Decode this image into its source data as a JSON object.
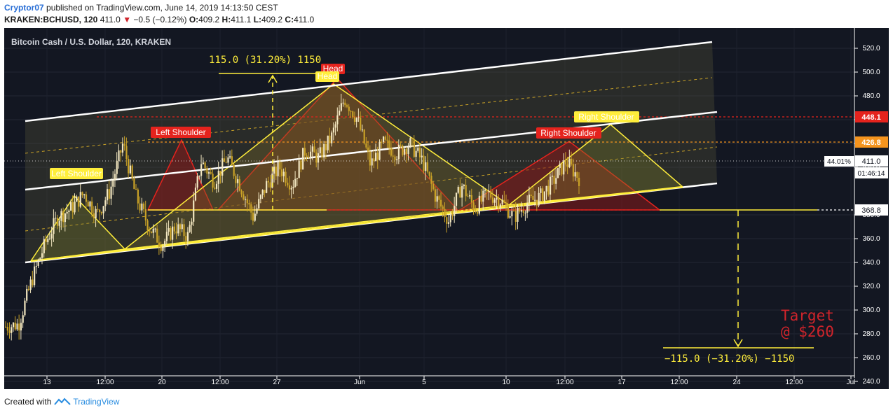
{
  "header": {
    "author": "Cryptor07",
    "published_text": "published on TradingView.com, June 14, 2019 14:13:50 CEST",
    "symbol": "KRAKEN:BCHUSD, 120",
    "last": "411.0",
    "change_arrow": "▼",
    "change": "−0.5 (−0.12%)",
    "o_label": "O:",
    "o_value": "409.2",
    "h_label": "H:",
    "h_value": "411.1",
    "l_label": "L:",
    "l_value": "409.2",
    "c_label": "C:",
    "c_value": "411.0"
  },
  "chart_title": "Bitcoin Cash / U.S. Dollar, 120, KRAKEN",
  "colors": {
    "background": "#131722",
    "candle": "#e8d9a8",
    "white_channel": "#ffffff",
    "yellow": "#ffee3b",
    "red": "#e5231d",
    "orange": "#f5941e",
    "grid": "#2a2e39"
  },
  "annotations": {
    "measure_top": "115.0  (31.20%)  1150",
    "measure_bottom": "−115.0  (−31.20%)  −1150",
    "target_line1": "Target",
    "target_line2": "@ $260",
    "labels": {
      "head_red": "Head",
      "head_yellow": "Head",
      "left_shoulder_red": "Left Shoulder",
      "left_shoulder_yellow": "Left Shoulder",
      "right_shoulder_red": "Right Shoulder",
      "right_shoulder_yellow": "Right Shoulder"
    }
  },
  "price_axis": {
    "ticks": [
      "520.0",
      "500.0",
      "480.0",
      "460.0",
      "440.0",
      "420.0",
      "380.0",
      "360.0",
      "340.0",
      "320.0",
      "300.0",
      "280.0",
      "260.0",
      "240.0"
    ],
    "badges": {
      "level_448": "448.1",
      "level_426": "426.8",
      "current": "411.0",
      "pct": "44.01%",
      "countdown": "01:46:14",
      "level_368": "368.8"
    }
  },
  "time_axis": {
    "ticks": [
      "13",
      "12:00",
      "20",
      "12:00",
      "27",
      "Jun",
      "5",
      "10",
      "12:00",
      "17",
      "12:00",
      "24",
      "12:00",
      "Jul"
    ]
  },
  "footer": {
    "created_with": "Created with",
    "brand": "TradingView"
  },
  "chart_data": {
    "type": "candlestick",
    "title": "Bitcoin Cash / U.S. Dollar, 120, KRAKEN",
    "ylim": [
      230,
      522
    ],
    "y_ticks": [
      520,
      500,
      480,
      460,
      440,
      420,
      380,
      360,
      340,
      320,
      300,
      280,
      260,
      240
    ],
    "x_ticks": [
      "13",
      "12:00",
      "20",
      "12:00",
      "27",
      "Jun",
      "5",
      "10",
      "12:00",
      "17",
      "12:00",
      "24",
      "12:00",
      "Jul"
    ],
    "close_path": [
      {
        "x": "10",
        "y": 286
      },
      {
        "x": "11",
        "y": 288
      },
      {
        "x": "11",
        "y": 325
      },
      {
        "x": "11.5",
        "y": 355
      },
      {
        "x": "12",
        "y": 378
      },
      {
        "x": "13",
        "y": 385
      },
      {
        "x": "13.5",
        "y": 398
      },
      {
        "x": "14",
        "y": 380
      },
      {
        "x": "15",
        "y": 400
      },
      {
        "x": "15.5",
        "y": 440
      },
      {
        "x": "16",
        "y": 395
      },
      {
        "x": "16.5",
        "y": 370
      },
      {
        "x": "17",
        "y": 355
      },
      {
        "x": "18",
        "y": 370
      },
      {
        "x": "19",
        "y": 362
      },
      {
        "x": "20",
        "y": 425
      },
      {
        "x": "21",
        "y": 408
      },
      {
        "x": "22",
        "y": 428
      },
      {
        "x": "23",
        "y": 405
      },
      {
        "x": "24",
        "y": 378
      },
      {
        "x": "25",
        "y": 405
      },
      {
        "x": "26",
        "y": 420
      },
      {
        "x": "26.5",
        "y": 405
      },
      {
        "x": "27",
        "y": 435
      },
      {
        "x": "28",
        "y": 428
      },
      {
        "x": "29",
        "y": 445
      },
      {
        "x": "30",
        "y": 478
      },
      {
        "x": "30.5",
        "y": 460
      },
      {
        "x": "31",
        "y": 422
      },
      {
        "x": "31.5",
        "y": 440
      },
      {
        "x": "Jun 1",
        "y": 432
      },
      {
        "x": "2",
        "y": 440
      },
      {
        "x": "3",
        "y": 425
      },
      {
        "x": "4",
        "y": 395
      },
      {
        "x": "5",
        "y": 375
      },
      {
        "x": "6",
        "y": 405
      },
      {
        "x": "7",
        "y": 385
      },
      {
        "x": "8",
        "y": 398
      },
      {
        "x": "9",
        "y": 392
      },
      {
        "x": "10",
        "y": 378
      },
      {
        "x": "11",
        "y": 390
      },
      {
        "x": "12",
        "y": 395
      },
      {
        "x": "13",
        "y": 408
      },
      {
        "x": "13.5",
        "y": 425
      },
      {
        "x": "14",
        "y": 411
      }
    ],
    "last_close": 411.0,
    "levels": [
      448.1,
      426.8,
      368.8
    ],
    "target": 260
  }
}
